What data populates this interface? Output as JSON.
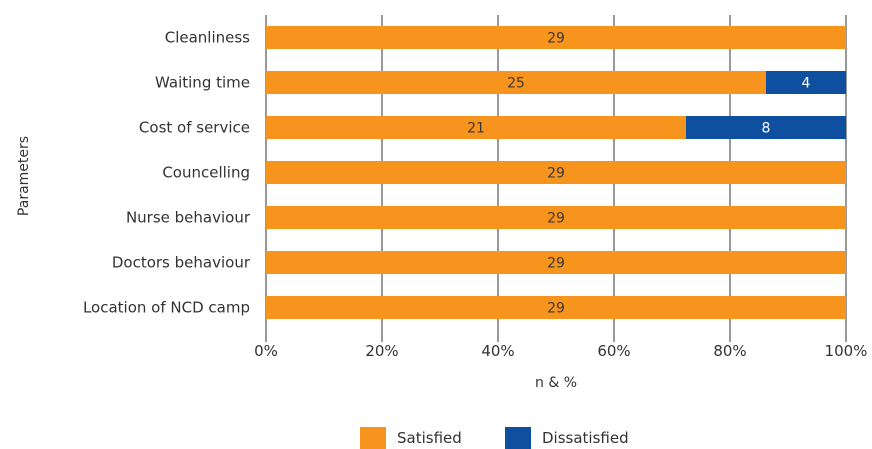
{
  "chart_data": {
    "type": "bar",
    "orientation": "horizontal",
    "stacked": true,
    "normalized_percent": true,
    "categories": [
      "Cleanliness",
      "Waiting time",
      "Cost of service",
      "Councelling",
      "Nurse behaviour",
      "Doctors behaviour",
      "Location of NCD camp"
    ],
    "series": [
      {
        "name": "Satisfied",
        "color": "#f7941d",
        "label_color": "#3a3a3a",
        "values": [
          29,
          25,
          21,
          29,
          29,
          29,
          29
        ]
      },
      {
        "name": "Dissatisfied",
        "color": "#0f4fa0",
        "label_color": "#ffffff",
        "values": [
          0,
          4,
          8,
          0,
          0,
          0,
          0
        ]
      }
    ],
    "xlabel": "n & %",
    "ylabel": "Parameters",
    "xlim": [
      0,
      100
    ],
    "xticks": [
      "0%",
      "20%",
      "40%",
      "60%",
      "80%",
      "100%"
    ],
    "grid": true,
    "legend_position": "bottom"
  }
}
